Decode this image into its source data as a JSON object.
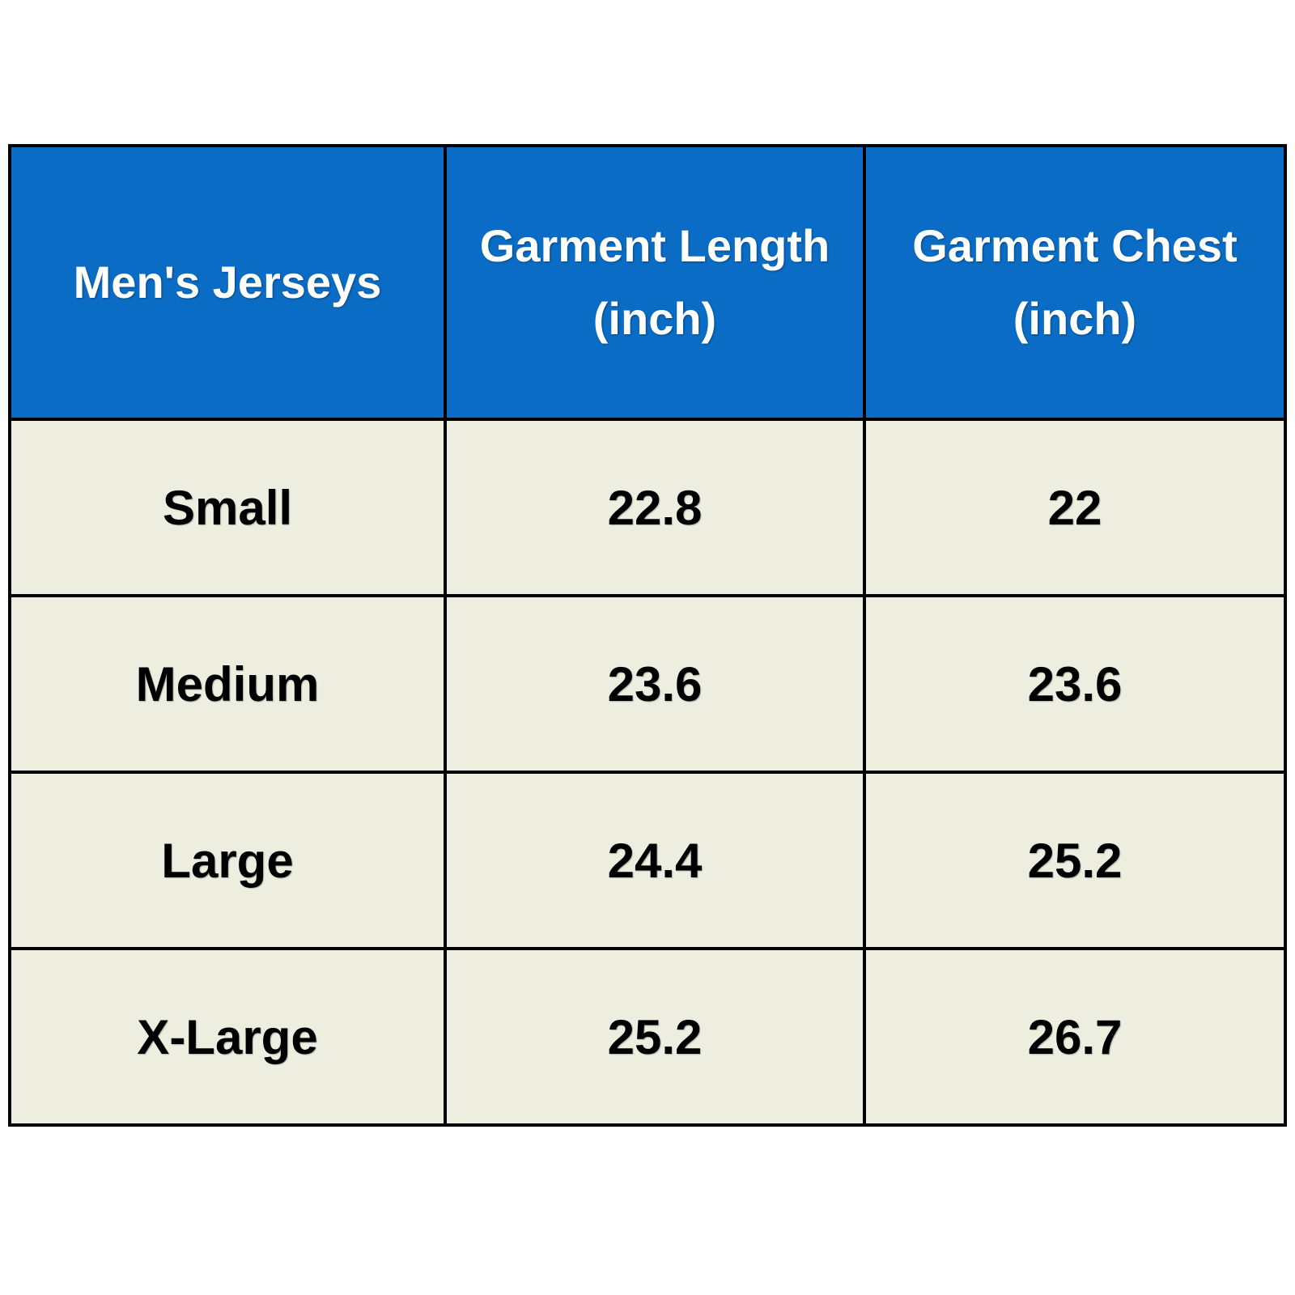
{
  "table": {
    "headers": [
      {
        "line1": "Men's Jerseys",
        "line2": ""
      },
      {
        "line1": "Garment Length",
        "line2": "(inch)"
      },
      {
        "line1": "Garment Chest",
        "line2": "(inch)"
      }
    ],
    "rows": [
      [
        "Small",
        "22.8",
        "22"
      ],
      [
        "Medium",
        "23.6",
        "23.6"
      ],
      [
        "Large",
        "24.4",
        "25.2"
      ],
      [
        "X-Large",
        "25.2",
        "26.7"
      ]
    ]
  },
  "colors": {
    "header_bg": "#0a6cc4",
    "header_text": "#ffffff",
    "cell_bg": "#edeee0",
    "border": "#000000"
  }
}
